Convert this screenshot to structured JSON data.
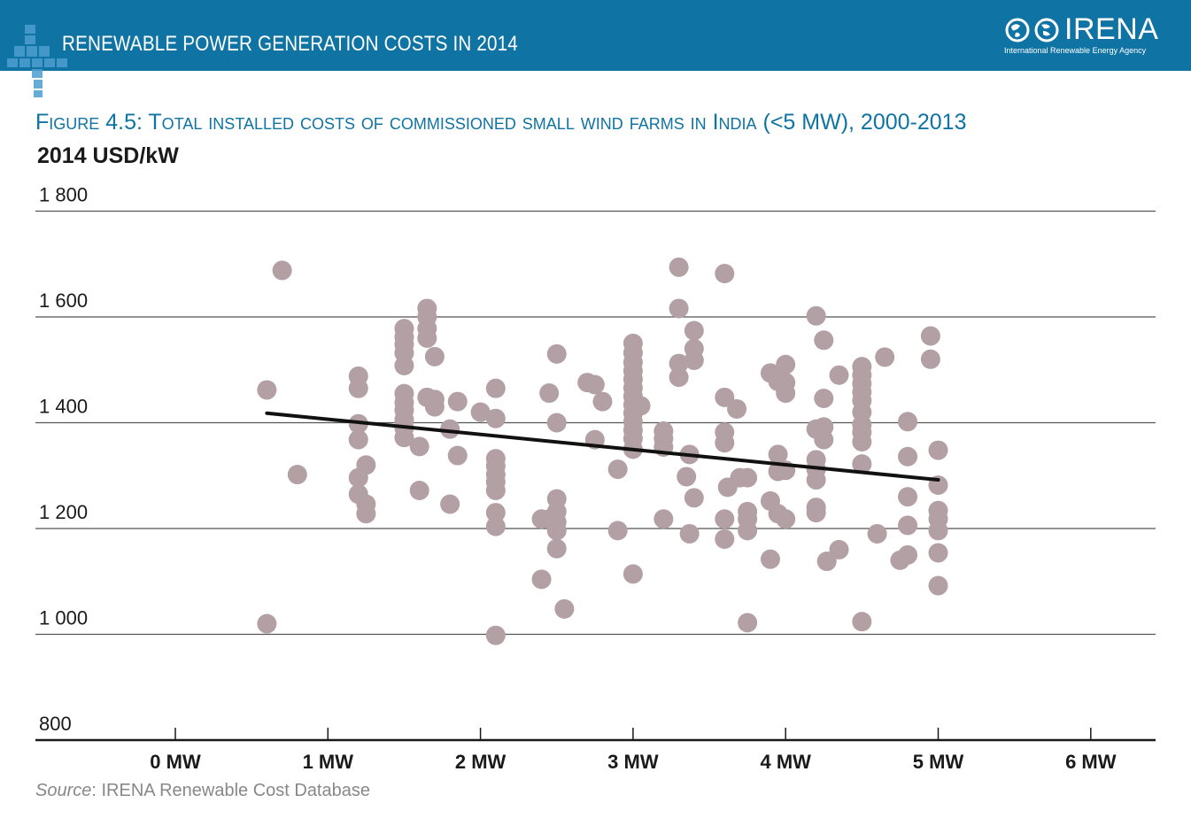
{
  "header": {
    "title": "RENEWABLE POWER GENERATION COSTS IN 2014",
    "logo_name": "IRENA",
    "logo_subtitle": "International Renewable Energy Agency",
    "logo_icon": "globe-icon",
    "corner_icon": "cross-pattern-icon"
  },
  "colors": {
    "banner": "#0f73a3",
    "title": "#0f73a3",
    "point": "#b2a0a4",
    "trend": "#111111",
    "grid": "#555555"
  },
  "figure": {
    "title": "Figure 4.5: Total installed costs of commissioned small wind farms in India (<5 MW), 2000-2013",
    "unit_label": "2014 USD/kW"
  },
  "source": {
    "prefix": "Source",
    "text": ": IRENA Renewable Cost Database"
  },
  "chart_data": {
    "type": "scatter",
    "title": "Figure 4.5: Total installed costs of commissioned small wind farms in India (<5 MW), 2000-2013",
    "xlabel": "",
    "ylabel": "2014 USD/kW",
    "xlim": [
      -1,
      6.3
    ],
    "ylim": [
      800,
      1800
    ],
    "x_ticks": [
      0,
      1,
      2,
      3,
      4,
      5,
      6
    ],
    "x_tick_labels": [
      "0 MW",
      "1 MW",
      "2 MW",
      "3 MW",
      "4 MW",
      "5 MW",
      "6 MW"
    ],
    "y_ticks": [
      800,
      1000,
      1200,
      1400,
      1600,
      1800
    ],
    "y_tick_labels": [
      "800",
      "1 000",
      "1 200",
      "1 400",
      "1 600",
      "1 800"
    ],
    "grid": "horizontal",
    "legend": "none",
    "trendline": {
      "x": [
        0.6,
        5.0
      ],
      "y": [
        1418,
        1292
      ]
    },
    "points": [
      [
        0.6,
        1462
      ],
      [
        0.6,
        1020
      ],
      [
        0.7,
        1688
      ],
      [
        0.8,
        1302
      ],
      [
        1.2,
        1488
      ],
      [
        1.2,
        1465
      ],
      [
        1.2,
        1398
      ],
      [
        1.2,
        1368
      ],
      [
        1.2,
        1296
      ],
      [
        1.2,
        1265
      ],
      [
        1.25,
        1320
      ],
      [
        1.25,
        1246
      ],
      [
        1.25,
        1228
      ],
      [
        1.5,
        1578
      ],
      [
        1.5,
        1562
      ],
      [
        1.5,
        1548
      ],
      [
        1.5,
        1532
      ],
      [
        1.5,
        1508
      ],
      [
        1.5,
        1455
      ],
      [
        1.5,
        1438
      ],
      [
        1.5,
        1424
      ],
      [
        1.5,
        1406
      ],
      [
        1.5,
        1390
      ],
      [
        1.5,
        1372
      ],
      [
        1.6,
        1355
      ],
      [
        1.6,
        1272
      ],
      [
        1.65,
        1616
      ],
      [
        1.65,
        1600
      ],
      [
        1.65,
        1578
      ],
      [
        1.65,
        1560
      ],
      [
        1.65,
        1448
      ],
      [
        1.7,
        1525
      ],
      [
        1.7,
        1444
      ],
      [
        1.7,
        1430
      ],
      [
        1.8,
        1388
      ],
      [
        1.8,
        1246
      ],
      [
        1.85,
        1440
      ],
      [
        1.85,
        1338
      ],
      [
        2.0,
        1420
      ],
      [
        2.1,
        1465
      ],
      [
        2.1,
        1408
      ],
      [
        2.1,
        1332
      ],
      [
        2.1,
        1318
      ],
      [
        2.1,
        1302
      ],
      [
        2.1,
        1288
      ],
      [
        2.1,
        1272
      ],
      [
        2.1,
        1230
      ],
      [
        2.1,
        1204
      ],
      [
        2.1,
        998
      ],
      [
        2.4,
        1104
      ],
      [
        2.4,
        1218
      ],
      [
        2.45,
        1456
      ],
      [
        2.45,
        1218
      ],
      [
        2.5,
        1530
      ],
      [
        2.5,
        1400
      ],
      [
        2.5,
        1256
      ],
      [
        2.5,
        1232
      ],
      [
        2.5,
        1212
      ],
      [
        2.5,
        1196
      ],
      [
        2.5,
        1162
      ],
      [
        2.55,
        1048
      ],
      [
        2.7,
        1476
      ],
      [
        2.75,
        1472
      ],
      [
        2.75,
        1368
      ],
      [
        2.8,
        1440
      ],
      [
        2.9,
        1312
      ],
      [
        2.9,
        1196
      ],
      [
        3.0,
        1550
      ],
      [
        3.0,
        1532
      ],
      [
        3.0,
        1514
      ],
      [
        3.0,
        1498
      ],
      [
        3.0,
        1482
      ],
      [
        3.0,
        1466
      ],
      [
        3.0,
        1450
      ],
      [
        3.0,
        1434
      ],
      [
        3.0,
        1418
      ],
      [
        3.0,
        1402
      ],
      [
        3.0,
        1386
      ],
      [
        3.0,
        1370
      ],
      [
        3.0,
        1350
      ],
      [
        3.0,
        1114
      ],
      [
        3.05,
        1432
      ],
      [
        3.2,
        1384
      ],
      [
        3.2,
        1370
      ],
      [
        3.2,
        1354
      ],
      [
        3.2,
        1218
      ],
      [
        3.3,
        1694
      ],
      [
        3.3,
        1616
      ],
      [
        3.3,
        1512
      ],
      [
        3.3,
        1486
      ],
      [
        3.35,
        1298
      ],
      [
        3.37,
        1340
      ],
      [
        3.37,
        1190
      ],
      [
        3.4,
        1574
      ],
      [
        3.4,
        1540
      ],
      [
        3.4,
        1518
      ],
      [
        3.4,
        1258
      ],
      [
        3.6,
        1682
      ],
      [
        3.6,
        1448
      ],
      [
        3.6,
        1382
      ],
      [
        3.6,
        1362
      ],
      [
        3.6,
        1218
      ],
      [
        3.6,
        1180
      ],
      [
        3.62,
        1278
      ],
      [
        3.68,
        1426
      ],
      [
        3.7,
        1296
      ],
      [
        3.75,
        1296
      ],
      [
        3.75,
        1232
      ],
      [
        3.75,
        1218
      ],
      [
        3.75,
        1196
      ],
      [
        3.75,
        1022
      ],
      [
        3.9,
        1494
      ],
      [
        3.9,
        1252
      ],
      [
        3.9,
        1142
      ],
      [
        3.95,
        1478
      ],
      [
        3.95,
        1340
      ],
      [
        3.95,
        1308
      ],
      [
        3.95,
        1228
      ],
      [
        4.0,
        1510
      ],
      [
        4.0,
        1476
      ],
      [
        4.0,
        1456
      ],
      [
        4.0,
        1310
      ],
      [
        4.0,
        1218
      ],
      [
        4.2,
        1602
      ],
      [
        4.2,
        1388
      ],
      [
        4.2,
        1330
      ],
      [
        4.2,
        1312
      ],
      [
        4.2,
        1292
      ],
      [
        4.2,
        1240
      ],
      [
        4.2,
        1230
      ],
      [
        4.25,
        1556
      ],
      [
        4.25,
        1446
      ],
      [
        4.25,
        1392
      ],
      [
        4.25,
        1368
      ],
      [
        4.27,
        1138
      ],
      [
        4.35,
        1490
      ],
      [
        4.35,
        1160
      ],
      [
        4.5,
        1506
      ],
      [
        4.5,
        1490
      ],
      [
        4.5,
        1474
      ],
      [
        4.5,
        1458
      ],
      [
        4.5,
        1442
      ],
      [
        4.5,
        1420
      ],
      [
        4.5,
        1396
      ],
      [
        4.5,
        1382
      ],
      [
        4.5,
        1364
      ],
      [
        4.5,
        1322
      ],
      [
        4.5,
        1024
      ],
      [
        4.6,
        1190
      ],
      [
        4.65,
        1524
      ],
      [
        4.75,
        1140
      ],
      [
        4.8,
        1402
      ],
      [
        4.8,
        1336
      ],
      [
        4.8,
        1260
      ],
      [
        4.8,
        1206
      ],
      [
        4.8,
        1150
      ],
      [
        4.95,
        1564
      ],
      [
        4.95,
        1520
      ],
      [
        5.0,
        1348
      ],
      [
        5.0,
        1282
      ],
      [
        5.0,
        1234
      ],
      [
        5.0,
        1218
      ],
      [
        5.0,
        1196
      ],
      [
        5.0,
        1154
      ],
      [
        5.0,
        1092
      ]
    ]
  }
}
